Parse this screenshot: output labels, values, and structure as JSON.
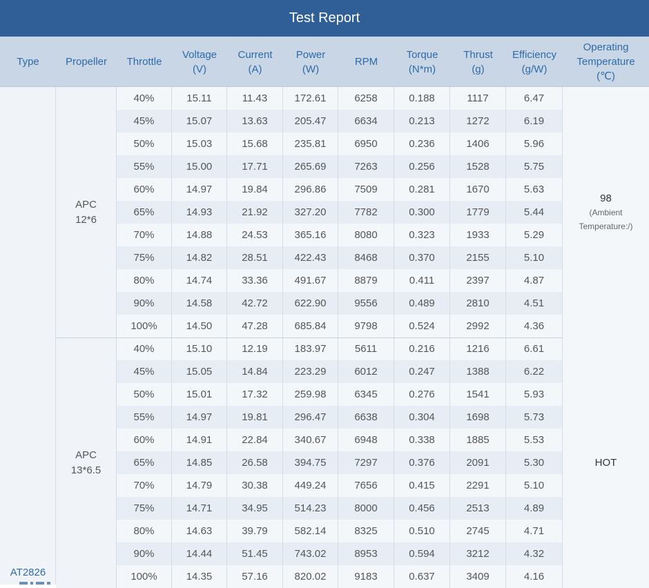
{
  "title": "Test Report",
  "headers": [
    [
      "Type"
    ],
    [
      "Propeller"
    ],
    [
      "Throttle"
    ],
    [
      "Voltage",
      "(V)"
    ],
    [
      "Current",
      "(A)"
    ],
    [
      "Power",
      "(W)"
    ],
    [
      "RPM"
    ],
    [
      "Torque",
      "(N*m)"
    ],
    [
      "Thrust",
      "(g)"
    ],
    [
      "Efficiency",
      "(g/W)"
    ],
    [
      "Operating",
      "Temperature",
      "(℃)"
    ]
  ],
  "type": "AT2826",
  "groups": [
    {
      "propeller": [
        "APC",
        "12*6"
      ],
      "temperature": {
        "value": "98",
        "note": [
          "(Ambient",
          "Temperature:/)"
        ]
      },
      "rows": [
        [
          "40%",
          "15.11",
          "11.43",
          "172.61",
          "6258",
          "0.188",
          "1117",
          "6.47"
        ],
        [
          "45%",
          "15.07",
          "13.63",
          "205.47",
          "6634",
          "0.213",
          "1272",
          "6.19"
        ],
        [
          "50%",
          "15.03",
          "15.68",
          "235.81",
          "6950",
          "0.236",
          "1406",
          "5.96"
        ],
        [
          "55%",
          "15.00",
          "17.71",
          "265.69",
          "7263",
          "0.256",
          "1528",
          "5.75"
        ],
        [
          "60%",
          "14.97",
          "19.84",
          "296.86",
          "7509",
          "0.281",
          "1670",
          "5.63"
        ],
        [
          "65%",
          "14.93",
          "21.92",
          "327.20",
          "7782",
          "0.300",
          "1779",
          "5.44"
        ],
        [
          "70%",
          "14.88",
          "24.53",
          "365.16",
          "8080",
          "0.323",
          "1933",
          "5.29"
        ],
        [
          "75%",
          "14.82",
          "28.51",
          "422.43",
          "8468",
          "0.370",
          "2155",
          "5.10"
        ],
        [
          "80%",
          "14.74",
          "33.36",
          "491.67",
          "8879",
          "0.411",
          "2397",
          "4.87"
        ],
        [
          "90%",
          "14.58",
          "42.72",
          "622.90",
          "9556",
          "0.489",
          "2810",
          "4.51"
        ],
        [
          "100%",
          "14.50",
          "47.28",
          "685.84",
          "9798",
          "0.524",
          "2992",
          "4.36"
        ]
      ]
    },
    {
      "propeller": [
        "APC",
        "13*6.5"
      ],
      "temperature": {
        "value": "HOT",
        "note": []
      },
      "rows": [
        [
          "40%",
          "15.10",
          "12.19",
          "183.97",
          "5611",
          "0.216",
          "1216",
          "6.61"
        ],
        [
          "45%",
          "15.05",
          "14.84",
          "223.29",
          "6012",
          "0.247",
          "1388",
          "6.22"
        ],
        [
          "50%",
          "15.01",
          "17.32",
          "259.98",
          "6345",
          "0.276",
          "1541",
          "5.93"
        ],
        [
          "55%",
          "14.97",
          "19.81",
          "296.47",
          "6638",
          "0.304",
          "1698",
          "5.73"
        ],
        [
          "60%",
          "14.91",
          "22.84",
          "340.67",
          "6948",
          "0.338",
          "1885",
          "5.53"
        ],
        [
          "65%",
          "14.85",
          "26.58",
          "394.75",
          "7297",
          "0.376",
          "2091",
          "5.30"
        ],
        [
          "70%",
          "14.79",
          "30.38",
          "449.24",
          "7656",
          "0.415",
          "2291",
          "5.10"
        ],
        [
          "75%",
          "14.71",
          "34.95",
          "514.23",
          "8000",
          "0.456",
          "2513",
          "4.89"
        ],
        [
          "80%",
          "14.63",
          "39.79",
          "582.14",
          "8325",
          "0.510",
          "2745",
          "4.71"
        ],
        [
          "90%",
          "14.44",
          "51.45",
          "743.02",
          "8953",
          "0.594",
          "3212",
          "4.32"
        ],
        [
          "100%",
          "14.35",
          "57.16",
          "820.02",
          "9183",
          "0.637",
          "3409",
          "4.16"
        ]
      ]
    }
  ]
}
